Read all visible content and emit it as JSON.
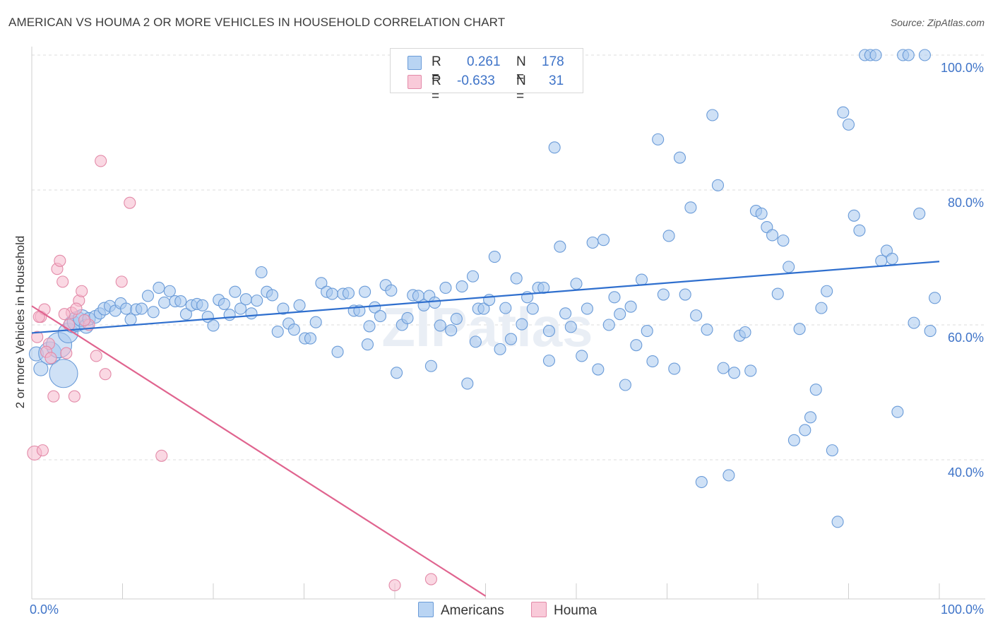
{
  "title": "AMERICAN VS HOUMA 2 OR MORE VEHICLES IN HOUSEHOLD CORRELATION CHART",
  "source": "Source: ZipAtlas.com",
  "watermark": "ZIPatlas",
  "legend": {
    "rows": [
      {
        "r_label": "R =",
        "r_value": "0.261",
        "n_label": "N =",
        "n_value": "178",
        "color": "#a8c8ee",
        "stroke": "#6a9bd8"
      },
      {
        "r_label": "R =",
        "r_value": "-0.633",
        "n_label": "N =",
        "n_value": "31",
        "color": "#f6b8cc",
        "stroke": "#e38aa8"
      }
    ]
  },
  "bottom_legend": [
    {
      "label": "Americans",
      "color": "#a8c8ee",
      "stroke": "#6a9bd8"
    },
    {
      "label": "Houma",
      "color": "#f6b8cc",
      "stroke": "#e38aa8"
    }
  ],
  "chart_data": {
    "type": "scatter",
    "title": "AMERICAN VS HOUMA 2 OR MORE VEHICLES IN HOUSEHOLD CORRELATION CHART",
    "xlabel": "",
    "ylabel": "2 or more Vehicles in Household",
    "xlim": [
      0,
      100
    ],
    "ylim": [
      18,
      102
    ],
    "x_tick_labels": [
      "0.0%",
      "100.0%"
    ],
    "y_ticks": [
      {
        "value": 40,
        "label": "40.0%"
      },
      {
        "value": 60,
        "label": "60.0%"
      },
      {
        "value": 80,
        "label": "80.0%"
      },
      {
        "value": 100,
        "label": "100.0%"
      }
    ],
    "grid": "horizontal dashed",
    "series": [
      {
        "name": "Americans",
        "color": "#a8c8ee",
        "stroke": "#6a9bd8",
        "line_color": "#2f6fce",
        "trend": {
          "x": [
            0,
            100
          ],
          "y": [
            58.8,
            69.4
          ]
        },
        "points": [
          [
            0.5,
            55.7,
            10
          ],
          [
            1.0,
            53.5,
            10
          ],
          [
            2.0,
            55.8,
            16
          ],
          [
            3.0,
            57.0,
            18
          ],
          [
            3.5,
            52.8,
            20
          ],
          [
            4.0,
            58.8,
            14
          ],
          [
            4.5,
            60.1,
            12
          ],
          [
            5.0,
            60.5,
            14
          ],
          [
            5.5,
            61.0,
            12
          ],
          [
            6.0,
            59.8,
            10
          ],
          [
            6.3,
            60.9,
            9
          ],
          [
            7.0,
            61.2,
            9
          ],
          [
            7.5,
            61.7,
            8
          ],
          [
            8.0,
            62.4,
            9
          ],
          [
            8.6,
            62.8,
            8
          ],
          [
            9.2,
            62.1,
            8
          ],
          [
            9.8,
            63.2,
            8
          ],
          [
            10.4,
            62.4,
            8
          ],
          [
            10.9,
            60.8,
            8
          ],
          [
            11.5,
            62.3,
            8
          ],
          [
            12.1,
            62.4,
            8
          ],
          [
            12.8,
            64.3,
            8
          ],
          [
            13.4,
            61.9,
            8
          ],
          [
            14.0,
            65.5,
            8
          ],
          [
            14.6,
            63.3,
            8
          ],
          [
            15.2,
            65.0,
            8
          ],
          [
            15.8,
            63.5,
            8
          ],
          [
            16.4,
            63.5,
            8
          ],
          [
            17.0,
            61.6,
            8
          ],
          [
            17.6,
            62.9,
            8
          ],
          [
            18.2,
            63.1,
            8
          ],
          [
            18.8,
            62.9,
            8
          ],
          [
            19.4,
            61.2,
            8
          ],
          [
            20.0,
            59.9,
            8
          ],
          [
            20.6,
            63.7,
            8
          ],
          [
            21.2,
            63.1,
            8
          ],
          [
            21.8,
            61.5,
            8
          ],
          [
            22.4,
            64.9,
            8
          ],
          [
            23.0,
            62.4,
            8
          ],
          [
            23.6,
            63.8,
            8
          ],
          [
            24.2,
            61.7,
            8
          ],
          [
            24.8,
            63.6,
            8
          ],
          [
            25.3,
            67.8,
            8
          ],
          [
            25.9,
            64.9,
            8
          ],
          [
            26.5,
            64.4,
            8
          ],
          [
            27.1,
            59.0,
            8
          ],
          [
            27.7,
            62.4,
            8
          ],
          [
            28.3,
            60.2,
            8
          ],
          [
            28.9,
            59.3,
            8
          ],
          [
            29.5,
            62.9,
            8
          ],
          [
            30.1,
            58.0,
            8
          ],
          [
            30.7,
            58.0,
            8
          ],
          [
            31.3,
            60.4,
            8
          ],
          [
            31.9,
            66.2,
            8
          ],
          [
            32.5,
            64.9,
            8
          ],
          [
            33.1,
            64.6,
            8
          ],
          [
            33.7,
            56.0,
            8
          ],
          [
            34.3,
            64.6,
            8
          ],
          [
            34.9,
            64.7,
            8
          ],
          [
            35.5,
            62.1,
            8
          ],
          [
            36.1,
            62.1,
            8
          ],
          [
            36.7,
            64.9,
            8
          ],
          [
            37.2,
            59.8,
            8
          ],
          [
            37.8,
            62.6,
            8
          ],
          [
            38.4,
            61.3,
            8
          ],
          [
            39.0,
            65.9,
            8
          ],
          [
            39.6,
            65.1,
            8
          ],
          [
            40.2,
            52.9,
            8
          ],
          [
            40.8,
            60.0,
            8
          ],
          [
            41.4,
            61.0,
            8
          ],
          [
            42.0,
            64.4,
            8
          ],
          [
            42.6,
            64.3,
            8
          ],
          [
            43.2,
            62.9,
            8
          ],
          [
            43.8,
            64.3,
            8
          ],
          [
            44.4,
            63.3,
            8
          ],
          [
            45.0,
            59.9,
            8
          ],
          [
            45.6,
            65.5,
            8
          ],
          [
            46.2,
            59.2,
            8
          ],
          [
            46.8,
            60.9,
            8
          ],
          [
            47.4,
            65.7,
            8
          ],
          [
            48.0,
            51.3,
            8
          ],
          [
            48.6,
            67.2,
            8
          ],
          [
            49.2,
            62.4,
            8
          ],
          [
            49.8,
            62.4,
            8
          ],
          [
            50.4,
            63.7,
            8
          ],
          [
            51.0,
            70.1,
            8
          ],
          [
            51.6,
            56.4,
            8
          ],
          [
            52.2,
            62.5,
            8
          ],
          [
            52.8,
            57.9,
            8
          ],
          [
            53.4,
            66.9,
            8
          ],
          [
            54.0,
            60.1,
            8
          ],
          [
            54.6,
            64.1,
            8
          ],
          [
            55.2,
            62.4,
            8
          ],
          [
            55.8,
            65.5,
            8
          ],
          [
            56.4,
            65.5,
            8
          ],
          [
            57.0,
            54.7,
            8
          ],
          [
            57.6,
            86.3,
            8
          ],
          [
            58.2,
            71.6,
            8
          ],
          [
            58.8,
            61.7,
            8
          ],
          [
            59.4,
            59.7,
            8
          ],
          [
            60.0,
            66.1,
            8
          ],
          [
            60.6,
            55.4,
            8
          ],
          [
            61.2,
            62.4,
            8
          ],
          [
            61.8,
            72.2,
            8
          ],
          [
            62.4,
            53.4,
            8
          ],
          [
            63.0,
            72.6,
            8
          ],
          [
            63.6,
            60.0,
            8
          ],
          [
            64.2,
            64.1,
            8
          ],
          [
            64.8,
            61.6,
            8
          ],
          [
            65.4,
            51.1,
            8
          ],
          [
            66.0,
            62.7,
            8
          ],
          [
            66.6,
            57.0,
            8
          ],
          [
            67.2,
            66.7,
            8
          ],
          [
            67.8,
            59.1,
            8
          ],
          [
            68.4,
            54.6,
            8
          ],
          [
            69.0,
            87.5,
            8
          ],
          [
            69.6,
            64.5,
            8
          ],
          [
            70.2,
            73.2,
            8
          ],
          [
            70.8,
            53.5,
            8
          ],
          [
            71.4,
            84.8,
            8
          ],
          [
            72.0,
            64.5,
            8
          ],
          [
            72.6,
            77.4,
            8
          ],
          [
            73.2,
            61.4,
            8
          ],
          [
            73.8,
            36.7,
            8
          ],
          [
            74.4,
            59.3,
            8
          ],
          [
            75.0,
            91.1,
            8
          ],
          [
            75.6,
            80.7,
            8
          ],
          [
            76.2,
            53.6,
            8
          ],
          [
            76.8,
            37.7,
            8
          ],
          [
            77.4,
            52.9,
            8
          ],
          [
            78.0,
            58.4,
            8
          ],
          [
            78.6,
            58.9,
            8
          ],
          [
            79.2,
            53.2,
            8
          ],
          [
            79.8,
            76.9,
            8
          ],
          [
            80.4,
            76.5,
            8
          ],
          [
            81.0,
            74.5,
            8
          ],
          [
            81.6,
            73.3,
            8
          ],
          [
            82.2,
            64.6,
            8
          ],
          [
            82.8,
            72.5,
            8
          ],
          [
            83.4,
            68.6,
            8
          ],
          [
            84.0,
            42.9,
            8
          ],
          [
            84.6,
            59.4,
            8
          ],
          [
            85.2,
            44.4,
            8
          ],
          [
            85.8,
            46.3,
            8
          ],
          [
            86.4,
            50.4,
            8
          ],
          [
            87.0,
            62.5,
            8
          ],
          [
            87.6,
            65.0,
            8
          ],
          [
            88.2,
            41.4,
            8
          ],
          [
            88.8,
            30.8,
            8
          ],
          [
            89.4,
            91.5,
            8
          ],
          [
            90.0,
            89.7,
            8
          ],
          [
            90.6,
            76.2,
            8
          ],
          [
            91.2,
            74.0,
            8
          ],
          [
            91.8,
            100.0,
            8
          ],
          [
            92.4,
            100.0,
            8
          ],
          [
            93.0,
            100.0,
            8
          ],
          [
            93.6,
            69.5,
            8
          ],
          [
            94.2,
            71.0,
            8
          ],
          [
            94.8,
            69.8,
            8
          ],
          [
            95.4,
            47.1,
            8
          ],
          [
            96.0,
            100.0,
            8
          ],
          [
            96.6,
            100.0,
            8
          ],
          [
            97.2,
            60.3,
            8
          ],
          [
            97.8,
            76.5,
            8
          ],
          [
            98.4,
            100.0,
            8
          ],
          [
            99.0,
            59.1,
            8
          ],
          [
            99.5,
            64.0,
            8
          ],
          [
            48.9,
            57.5,
            8
          ],
          [
            37.0,
            57.1,
            8
          ],
          [
            57.0,
            59.1,
            8
          ],
          [
            44.0,
            53.9,
            8
          ]
        ]
      },
      {
        "name": "Houma",
        "color": "#f6b8cc",
        "stroke": "#e38aa8",
        "line_color": "#e0648f",
        "trend": {
          "x": [
            0,
            50
          ],
          "y": [
            62.8,
            19.8
          ]
        },
        "points": [
          [
            0.3,
            41.0,
            10
          ],
          [
            1.0,
            61.2,
            8
          ],
          [
            1.4,
            62.3,
            8
          ],
          [
            1.9,
            57.2,
            8
          ],
          [
            2.4,
            49.4,
            8
          ],
          [
            2.8,
            68.3,
            8
          ],
          [
            3.1,
            69.5,
            8
          ],
          [
            3.4,
            66.4,
            8
          ],
          [
            3.8,
            55.8,
            8
          ],
          [
            4.1,
            60.0,
            8
          ],
          [
            4.4,
            61.8,
            8
          ],
          [
            4.7,
            49.4,
            8
          ],
          [
            5.2,
            63.6,
            8
          ],
          [
            5.5,
            65.0,
            8
          ],
          [
            6.3,
            60.0,
            8
          ],
          [
            7.1,
            55.4,
            8
          ],
          [
            7.6,
            84.3,
            8
          ],
          [
            8.1,
            52.7,
            8
          ],
          [
            9.9,
            66.4,
            8
          ],
          [
            10.8,
            78.1,
            8
          ],
          [
            14.3,
            40.6,
            8
          ],
          [
            0.8,
            61.2,
            8
          ],
          [
            1.6,
            56.0,
            8
          ],
          [
            2.1,
            55.1,
            8
          ],
          [
            3.6,
            61.6,
            8
          ],
          [
            4.9,
            62.4,
            8
          ],
          [
            5.8,
            60.7,
            8
          ],
          [
            1.2,
            41.4,
            8
          ],
          [
            0.6,
            58.2,
            8
          ],
          [
            40.0,
            21.4,
            8
          ],
          [
            44.0,
            22.3,
            8
          ]
        ]
      }
    ]
  }
}
